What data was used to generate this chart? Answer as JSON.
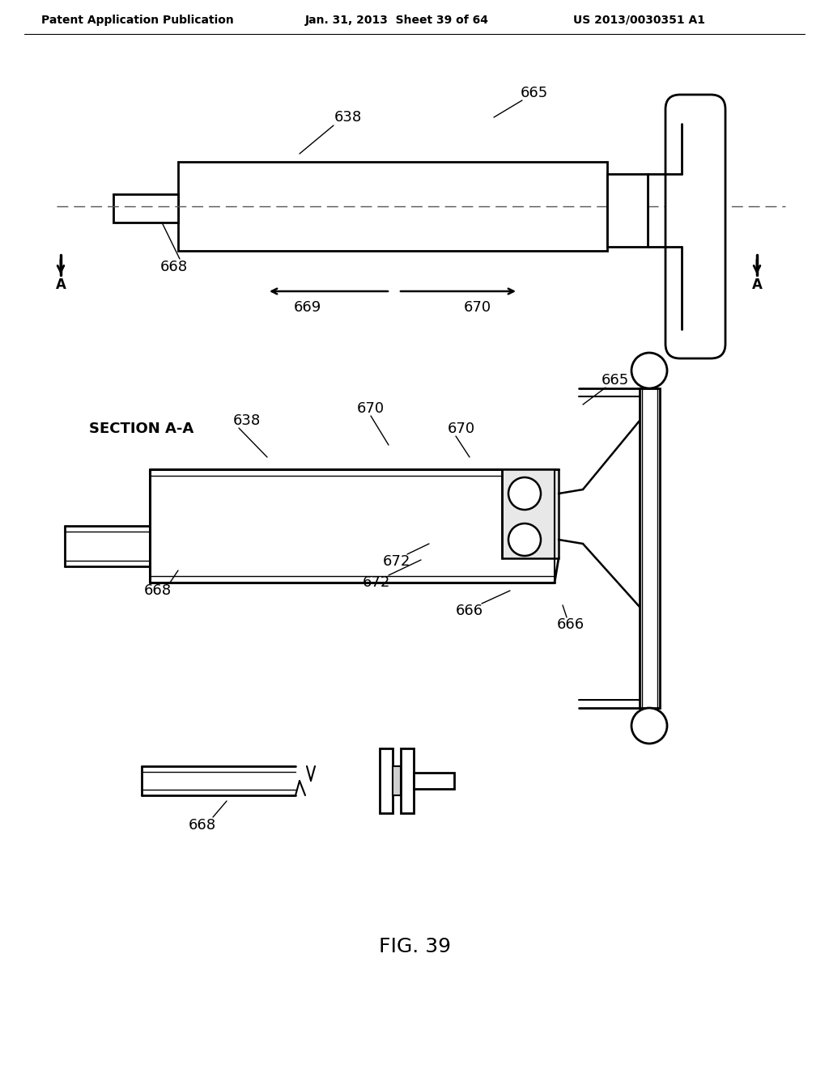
{
  "bg_color": "#ffffff",
  "header_left": "Patent Application Publication",
  "header_mid": "Jan. 31, 2013  Sheet 39 of 64",
  "header_right": "US 2013/0030351 A1",
  "fig_label": "FIG. 39"
}
